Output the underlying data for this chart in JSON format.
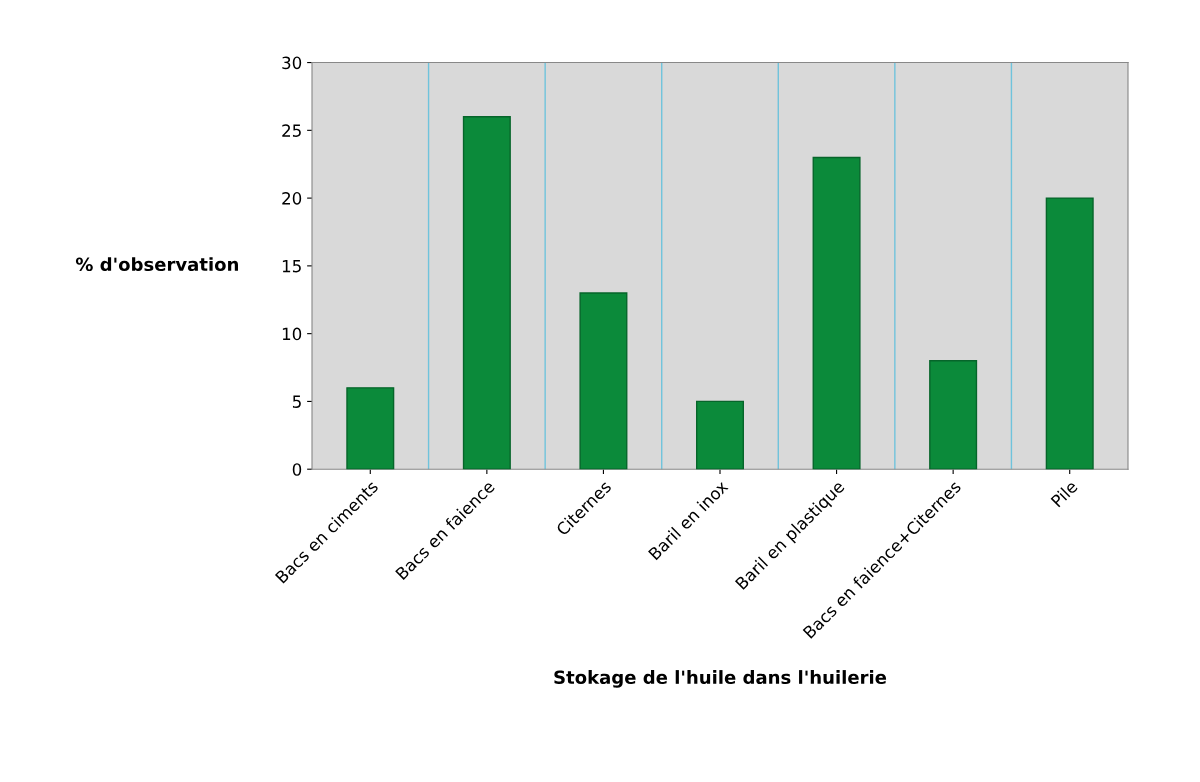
{
  "chart_data": {
    "type": "bar",
    "xlabel": "Stokage de l'huile dans l'huilerie",
    "ylabel": "% d'observation",
    "categories": [
      "Bacs en ciments",
      "Bacs en faience",
      "Citernes",
      "Baril en inox",
      "Baril en plastique",
      "Bacs en faience+Citernes",
      "Pile"
    ],
    "values": [
      6,
      26,
      13,
      5,
      23,
      8,
      20
    ],
    "color": "#0b8a3a",
    "ylim": [
      0,
      30
    ],
    "yticks": [
      0,
      5,
      10,
      15,
      20,
      25,
      30
    ],
    "grid": false
  }
}
